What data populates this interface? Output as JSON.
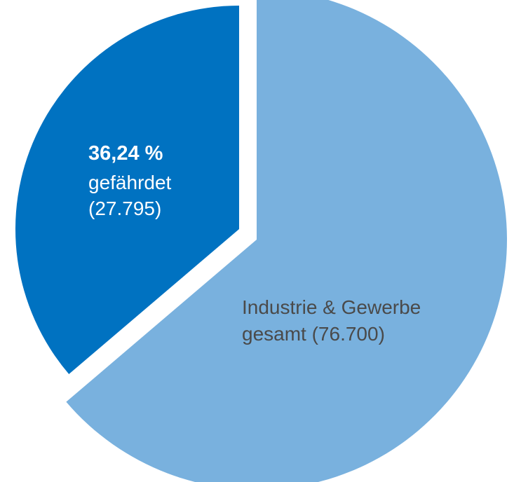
{
  "chart_data": {
    "type": "pie",
    "categories": [
      "gefährdet",
      "Industrie & Gewerbe gesamt"
    ],
    "values": [
      27795,
      48905
    ],
    "total": 76700,
    "labels": [
      {
        "pct": "36,24 %",
        "name": "gefährdet",
        "count": "(27.795)"
      },
      {
        "line1": "Industrie & Gewerbe",
        "line2": "gesamt (76.700)"
      }
    ],
    "colors": [
      "#0072c1",
      "#79b1de"
    ],
    "label_colors": [
      "#ffffff",
      "#4a4a4a"
    ],
    "exploded_slice": 0
  }
}
